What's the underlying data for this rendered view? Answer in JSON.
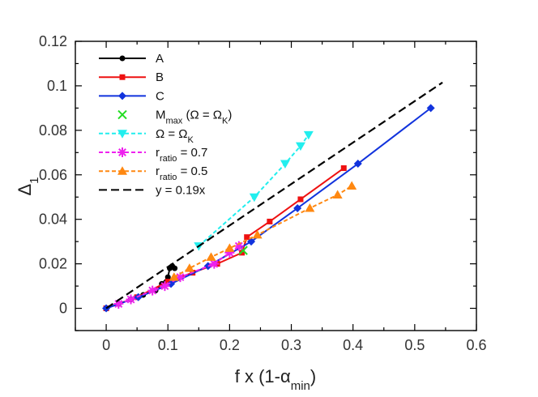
{
  "chart_data": {
    "type": "line",
    "xlabel": {
      "main": "f x (1-α",
      "sub": "min",
      "tail": ")"
    },
    "ylabel": {
      "main": "Δ",
      "sub": "1"
    },
    "xlim": [
      -0.05,
      0.6
    ],
    "ylim": [
      -0.01,
      0.12
    ],
    "xticks": [
      0,
      0.1,
      0.2,
      0.3,
      0.4,
      0.5,
      0.6
    ],
    "xtick_labels": [
      "0",
      "0.1",
      "0.2",
      "0.3",
      "0.4",
      "0.5",
      "0.6"
    ],
    "yticks": [
      0,
      0.02,
      0.04,
      0.06,
      0.08,
      0.1,
      0.12
    ],
    "ytick_labels": [
      "0",
      "0.02",
      "0.04",
      "0.06",
      "0.08",
      "0.1",
      "0.12"
    ],
    "grid": false,
    "legend_position": "top-left",
    "series": [
      {
        "name": "A",
        "legend": {
          "main": "A",
          "sub": "",
          "tail": ""
        },
        "color": "#000000",
        "marker": "circle",
        "dash": "solid",
        "points": [
          [
            0,
            0
          ],
          [
            0.02,
            0.002
          ],
          [
            0.04,
            0.004
          ],
          [
            0.06,
            0.006
          ],
          [
            0.08,
            0.008
          ],
          [
            0.09,
            0.011
          ],
          [
            0.1,
            0.014
          ],
          [
            0.103,
            0.018
          ],
          [
            0.107,
            0.019
          ],
          [
            0.111,
            0.018
          ]
        ]
      },
      {
        "name": "B",
        "legend": {
          "main": "B",
          "sub": "",
          "tail": ""
        },
        "color": "#ee1111",
        "marker": "square",
        "dash": "solid",
        "points": [
          [
            0,
            0
          ],
          [
            0.05,
            0.005
          ],
          [
            0.1,
            0.012
          ],
          [
            0.14,
            0.016
          ],
          [
            0.18,
            0.02
          ],
          [
            0.22,
            0.025
          ],
          [
            0.228,
            0.032
          ],
          [
            0.265,
            0.039
          ],
          [
            0.315,
            0.049
          ],
          [
            0.385,
            0.063
          ]
        ]
      },
      {
        "name": "C",
        "legend": {
          "main": "C",
          "sub": "",
          "tail": ""
        },
        "color": "#1133dd",
        "marker": "diamond",
        "dash": "solid",
        "points": [
          [
            0,
            0
          ],
          [
            0.052,
            0.005
          ],
          [
            0.105,
            0.011
          ],
          [
            0.165,
            0.019
          ],
          [
            0.235,
            0.03
          ],
          [
            0.31,
            0.045
          ],
          [
            0.408,
            0.065
          ],
          [
            0.526,
            0.09
          ]
        ]
      },
      {
        "name": "Mmax",
        "legend": {
          "main": "M",
          "sub": "max",
          "tail": " (Ω = Ω",
          "sub2": "K",
          "tail2": ")"
        },
        "color": "#22dd22",
        "marker": "x",
        "dash": "none",
        "points": [
          [
            0.222,
            0.026
          ]
        ]
      },
      {
        "name": "OmegaK",
        "legend": {
          "main": "Ω = Ω",
          "sub": "K",
          "tail": ""
        },
        "color": "#22eeee",
        "marker": "triangle-down",
        "dash": "dashed",
        "points": [
          [
            0.15,
            0.028
          ],
          [
            0.24,
            0.05
          ],
          [
            0.29,
            0.065
          ],
          [
            0.315,
            0.073
          ],
          [
            0.328,
            0.078
          ]
        ]
      },
      {
        "name": "rratio07",
        "legend": {
          "main": "r",
          "sub": "ratio",
          "tail": " = 0.7"
        },
        "color": "#ee22ee",
        "marker": "asterisk",
        "dash": "dashed",
        "points": [
          [
            0.02,
            0.002
          ],
          [
            0.04,
            0.004
          ],
          [
            0.075,
            0.008
          ],
          [
            0.095,
            0.01
          ],
          [
            0.12,
            0.014
          ],
          [
            0.175,
            0.02
          ],
          [
            0.2,
            0.025
          ],
          [
            0.215,
            0.028
          ]
        ]
      },
      {
        "name": "rratio05",
        "legend": {
          "main": "r",
          "sub": "ratio",
          "tail": " = 0.5"
        },
        "color": "#ff8811",
        "marker": "triangle-up",
        "dash": "dashed",
        "points": [
          [
            0.11,
            0.014
          ],
          [
            0.135,
            0.018
          ],
          [
            0.17,
            0.023
          ],
          [
            0.2,
            0.027
          ],
          [
            0.245,
            0.033
          ],
          [
            0.33,
            0.045
          ],
          [
            0.375,
            0.051
          ],
          [
            0.398,
            0.055
          ]
        ]
      },
      {
        "name": "fit",
        "legend": {
          "main": "y = 0.19x",
          "sub": "",
          "tail": ""
        },
        "color": "#000000",
        "marker": "none",
        "dash": "long-dashed",
        "points": [
          [
            0,
            0
          ],
          [
            0.545,
            0.1015
          ]
        ]
      }
    ]
  }
}
